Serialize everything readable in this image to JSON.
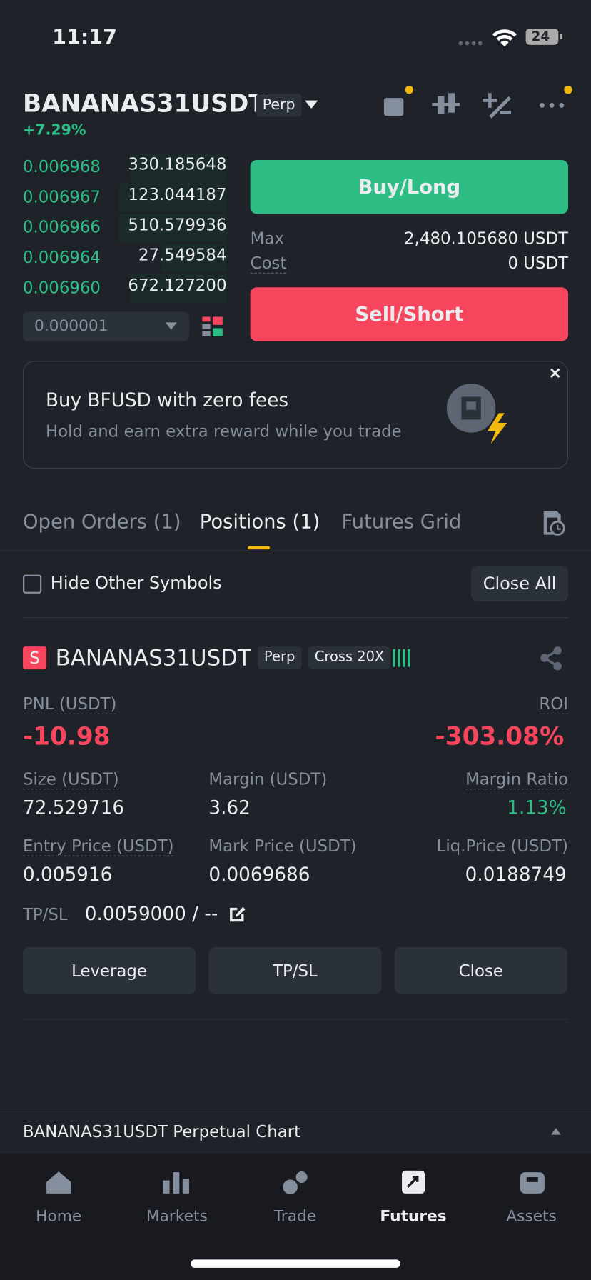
{
  "status_bar": {
    "time": "11:17",
    "battery": "24"
  },
  "header": {
    "symbol": "BANANAS31USDT",
    "contract": "Perp",
    "change": "+7.29%"
  },
  "order_book": {
    "rows": [
      [
        "0.006968",
        "330.185648"
      ],
      [
        "0.006967",
        "123.044187"
      ],
      [
        "0.006966",
        "510.579936"
      ],
      [
        "0.006964",
        "27.549584"
      ],
      [
        "0.006960",
        "672.127200"
      ]
    ],
    "tick_size": "0.000001"
  },
  "order_panel": {
    "buy": "Buy/Long",
    "max_label": "Max",
    "max_value": "2,480.105680 USDT",
    "cost_label": "Cost",
    "cost_value": "0 USDT",
    "sell": "Sell/Short"
  },
  "banner": {
    "title": "Buy BFUSD with zero fees",
    "subtitle": "Hold and earn extra reward while you trade"
  },
  "tabs": [
    "Open Orders (1)",
    "Positions (1)",
    "Futures Grid"
  ],
  "filter": {
    "hide_label": "Hide Other Symbols",
    "close_all": "Close All"
  },
  "position": {
    "side": "S",
    "symbol": "BANANAS31USDT",
    "contract": "Perp",
    "margin_mode": "Cross 20X",
    "pnl_label": "PNL (USDT)",
    "pnl": "-10.98",
    "roi_label": "ROI",
    "roi": "-303.08%",
    "size_label": "Size (USDT)",
    "size": "72.529716",
    "margin_label": "Margin (USDT)",
    "margin": "3.62",
    "margin_ratio_label": "Margin Ratio",
    "margin_ratio": "1.13%",
    "entry_label": "Entry Price (USDT)",
    "entry": "0.005916",
    "mark_label": "Mark Price (USDT)",
    "mark": "0.0069686",
    "liq_label": "Liq.Price (USDT)",
    "liq": "0.0188749",
    "tpsl_label": "TP/SL",
    "tpsl": "0.0059000 / --",
    "actions": [
      "Leverage",
      "TP/SL",
      "Close"
    ]
  },
  "chart_bar": {
    "label": "BANANAS31USDT Perpetual  Chart"
  },
  "nav": [
    "Home",
    "Markets",
    "Trade",
    "Futures",
    "Assets"
  ]
}
